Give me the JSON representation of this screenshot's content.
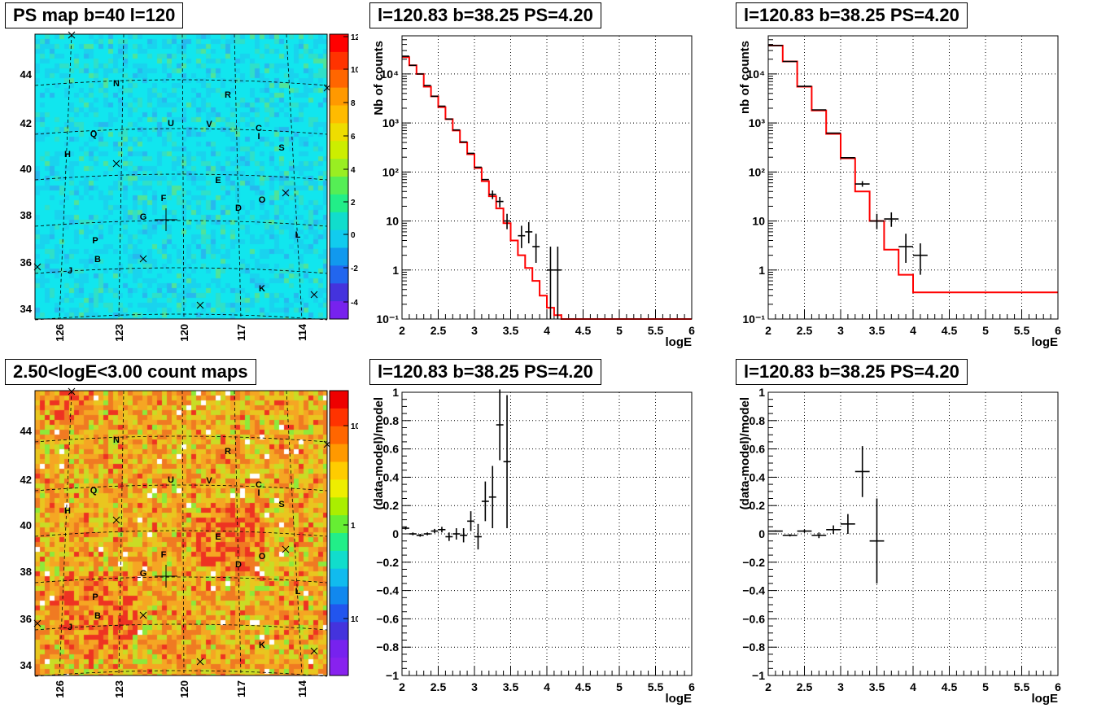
{
  "panels": {
    "map_ps": {
      "title": "PS map b=40 l=120",
      "lat_ticks": [
        "44",
        "42",
        "40",
        "38",
        "36",
        "34"
      ],
      "lon_ticks": [
        "126",
        "123",
        "120",
        "117",
        "114"
      ],
      "scale_ticks": [
        "12",
        "10",
        "8",
        "6",
        "4",
        "2",
        "0",
        "-2",
        "-4"
      ],
      "labels": [
        "N",
        "R",
        "Q",
        "U",
        "V",
        "C",
        "I",
        "H",
        "S",
        "E",
        "F",
        "O",
        "G",
        "D",
        "P",
        "L",
        "B",
        "J",
        "K"
      ]
    },
    "map_counts": {
      "title": "2.50<logE<3.00 count maps",
      "lat_ticks": [
        "44",
        "42",
        "40",
        "38",
        "36",
        "34"
      ],
      "lon_ticks": [
        "126",
        "123",
        "120",
        "117",
        "114"
      ],
      "scale_ticks": [
        "10",
        "1",
        "10⁻¹"
      ],
      "labels": [
        "N",
        "R",
        "Q",
        "U",
        "V",
        "C",
        "I",
        "H",
        "S",
        "E",
        "F",
        "O",
        "G",
        "D",
        "P",
        "L",
        "B",
        "J",
        "K"
      ]
    }
  },
  "chart_data": [
    {
      "type": "line",
      "title": "l=120.83 b=38.25 PS=4.20",
      "xlabel": "logE",
      "ylabel": "Nb of counts",
      "xlim": [
        2,
        6
      ],
      "ylim": [
        0.1,
        60000
      ],
      "yscale": "log",
      "grid": true,
      "xticks": [
        "2",
        "2.5",
        "3",
        "3.5",
        "4",
        "4.5",
        "5",
        "5.5",
        "6"
      ],
      "yticks": [
        "10⁻¹",
        "1",
        "10",
        "10²",
        "10³",
        "10⁴"
      ],
      "model_step": {
        "edges": [
          2.0,
          2.1,
          2.2,
          2.3,
          2.4,
          2.5,
          2.6,
          2.7,
          2.8,
          2.9,
          3.0,
          3.1,
          3.2,
          3.3,
          3.4,
          3.5,
          3.6,
          3.7,
          3.8,
          3.9,
          4.0,
          4.1,
          4.2,
          4.3
        ],
        "values": [
          22000,
          15000,
          10000,
          5500,
          3500,
          2100,
          1200,
          700,
          400,
          230,
          120,
          65,
          32,
          18,
          9,
          4,
          2,
          1.1,
          0.6,
          0.3,
          0.17,
          0.12,
          0.1
        ]
      },
      "points": [
        {
          "x": 2.05,
          "y": 23000
        },
        {
          "x": 2.15,
          "y": 15000
        },
        {
          "x": 2.25,
          "y": 10000
        },
        {
          "x": 2.35,
          "y": 5800
        },
        {
          "x": 2.45,
          "y": 3500
        },
        {
          "x": 2.55,
          "y": 2200
        },
        {
          "x": 2.65,
          "y": 1200
        },
        {
          "x": 2.75,
          "y": 720
        },
        {
          "x": 2.85,
          "y": 410
        },
        {
          "x": 2.95,
          "y": 240
        },
        {
          "x": 3.05,
          "y": 125
        },
        {
          "x": 3.15,
          "y": 70
        },
        {
          "x": 3.25,
          "y": 35,
          "lo": 28,
          "hi": 42
        },
        {
          "x": 3.35,
          "y": 25,
          "lo": 19,
          "hi": 31
        },
        {
          "x": 3.45,
          "y": 10,
          "lo": 6.8,
          "hi": 14
        },
        {
          "x": 3.65,
          "y": 5,
          "lo": 2.8,
          "hi": 8
        },
        {
          "x": 3.75,
          "y": 6,
          "lo": 3.5,
          "hi": 9.5
        },
        {
          "x": 3.85,
          "y": 3,
          "lo": 1.4,
          "hi": 5.5
        },
        {
          "x": 4.05,
          "y": 1,
          "lo": 0.1,
          "hi": 3
        },
        {
          "x": 4.15,
          "y": 1,
          "lo": 0.1,
          "hi": 3
        }
      ]
    },
    {
      "type": "line",
      "title": "l=120.83 b=38.25 PS=4.20",
      "xlabel": "logE",
      "ylabel": "nb of counts",
      "xlim": [
        2,
        6
      ],
      "ylim": [
        0.1,
        60000
      ],
      "yscale": "log",
      "grid": true,
      "xticks": [
        "2",
        "2.5",
        "3",
        "3.5",
        "4",
        "4.5",
        "5",
        "5.5",
        "6"
      ],
      "yticks": [
        "10⁻¹",
        "1",
        "10",
        "10²",
        "10³",
        "10⁴"
      ],
      "model_step": {
        "edges": [
          2.0,
          2.2,
          2.4,
          2.6,
          2.8,
          3.0,
          3.2,
          3.4,
          3.6,
          3.8,
          4.0,
          4.2
        ],
        "values": [
          38000,
          18000,
          5500,
          1800,
          600,
          190,
          40,
          10,
          2.6,
          0.8,
          0.35
        ]
      },
      "points": [
        {
          "x": 2.1,
          "y": 38000
        },
        {
          "x": 2.3,
          "y": 18000
        },
        {
          "x": 2.5,
          "y": 5600
        },
        {
          "x": 2.7,
          "y": 1850
        },
        {
          "x": 2.9,
          "y": 620
        },
        {
          "x": 3.1,
          "y": 195
        },
        {
          "x": 3.3,
          "y": 57,
          "lo": 50,
          "hi": 65
        },
        {
          "x": 3.5,
          "y": 10,
          "lo": 6.8,
          "hi": 14
        },
        {
          "x": 3.7,
          "y": 11,
          "lo": 7.6,
          "hi": 15
        },
        {
          "x": 3.9,
          "y": 3,
          "lo": 1.4,
          "hi": 5.5
        },
        {
          "x": 4.1,
          "y": 2,
          "lo": 0.8,
          "hi": 3.5
        }
      ]
    },
    {
      "type": "scatter",
      "title": "l=120.83 b=38.25 PS=4.20",
      "xlabel": "logE",
      "ylabel": "(data-model)/model",
      "xlim": [
        2,
        6
      ],
      "ylim": [
        -1,
        1
      ],
      "grid": true,
      "xticks": [
        "2",
        "2.5",
        "3",
        "3.5",
        "4",
        "4.5",
        "5",
        "5.5",
        "6"
      ],
      "yticks": [
        "−1",
        "−0.8",
        "−0.6",
        "−0.4",
        "−0.2",
        "0",
        "0.2",
        "0.4",
        "0.6",
        "0.8",
        "1"
      ],
      "points": [
        {
          "x": 2.05,
          "y": 0.04,
          "e": 0.01
        },
        {
          "x": 2.15,
          "y": 0.0,
          "e": 0.01
        },
        {
          "x": 2.25,
          "y": -0.01,
          "e": 0.01
        },
        {
          "x": 2.35,
          "y": 0.0,
          "e": 0.01
        },
        {
          "x": 2.45,
          "y": 0.02,
          "e": 0.015
        },
        {
          "x": 2.55,
          "y": 0.03,
          "e": 0.02
        },
        {
          "x": 2.65,
          "y": -0.02,
          "e": 0.03
        },
        {
          "x": 2.75,
          "y": 0.0,
          "e": 0.04
        },
        {
          "x": 2.85,
          "y": -0.01,
          "e": 0.05
        },
        {
          "x": 2.95,
          "y": 0.09,
          "e": 0.07
        },
        {
          "x": 3.05,
          "y": -0.02,
          "e": 0.09
        },
        {
          "x": 3.15,
          "y": 0.23,
          "e": 0.14
        },
        {
          "x": 3.25,
          "y": 0.26,
          "e": 0.22
        },
        {
          "x": 3.35,
          "y": 0.77,
          "e": 0.25
        },
        {
          "x": 3.45,
          "y": 0.51,
          "e": 0.47
        }
      ]
    },
    {
      "type": "scatter",
      "title": "l=120.83 b=38.25 PS=4.20",
      "xlabel": "logE",
      "ylabel": "(data-model)/model",
      "xlim": [
        2,
        6
      ],
      "ylim": [
        -1,
        1
      ],
      "grid": true,
      "xticks": [
        "2",
        "2.5",
        "3",
        "3.5",
        "4",
        "4.5",
        "5",
        "5.5",
        "6"
      ],
      "yticks": [
        "−1",
        "−0.8",
        "−0.6",
        "−0.4",
        "−0.2",
        "0",
        "0.2",
        "0.4",
        "0.6",
        "0.8",
        "1"
      ],
      "points": [
        {
          "x": 2.1,
          "y": 0.02,
          "e": 0.005
        },
        {
          "x": 2.3,
          "y": -0.01,
          "e": 0.008
        },
        {
          "x": 2.5,
          "y": 0.02,
          "e": 0.01
        },
        {
          "x": 2.7,
          "y": -0.01,
          "e": 0.02
        },
        {
          "x": 2.9,
          "y": 0.03,
          "e": 0.03
        },
        {
          "x": 3.1,
          "y": 0.07,
          "e": 0.07
        },
        {
          "x": 3.3,
          "y": 0.44,
          "e": 0.18
        },
        {
          "x": 3.5,
          "y": -0.05,
          "e": 0.3
        }
      ]
    }
  ]
}
